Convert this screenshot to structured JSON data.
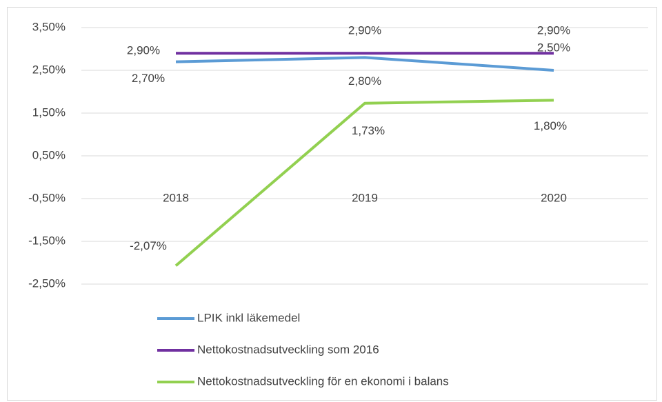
{
  "chart_data": {
    "type": "line",
    "categories": [
      "2018",
      "2019",
      "2020"
    ],
    "ylim": [
      -2.5,
      3.5
    ],
    "yticks": [
      {
        "value": -2.5,
        "label": "-2,50%"
      },
      {
        "value": -1.5,
        "label": "-1,50%"
      },
      {
        "value": -0.5,
        "label": "-0,50%"
      },
      {
        "value": 0.5,
        "label": "0,50%"
      },
      {
        "value": 1.5,
        "label": "1,50%"
      },
      {
        "value": 2.5,
        "label": "2,50%"
      },
      {
        "value": 3.5,
        "label": "3,50%"
      }
    ],
    "grid": true,
    "legend": "bottom",
    "series": [
      {
        "name": "LPIK inkl läkemedel",
        "color": "#5b9bd5",
        "values": [
          2.7,
          2.8,
          2.5
        ],
        "value_labels": [
          "2,70%",
          "2,80%",
          "2,50%"
        ]
      },
      {
        "name": "Nettokostnadsutveckling som 2016",
        "color": "#7030a0",
        "values": [
          2.9,
          2.9,
          2.9
        ],
        "value_labels": [
          "2,90%",
          "2,90%",
          "2,90%"
        ]
      },
      {
        "name": "Nettokostnadsutveckling för en ekonomi i balans",
        "color": "#92d050",
        "values": [
          -2.07,
          1.73,
          1.8
        ],
        "value_labels": [
          "-2,07%",
          "1,73%",
          "1,80%"
        ]
      }
    ]
  }
}
